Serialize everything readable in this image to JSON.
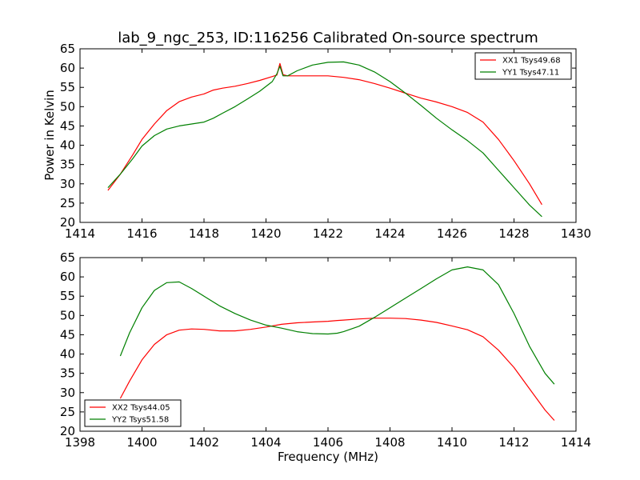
{
  "chart_data": [
    {
      "type": "line",
      "title": "lab_9_ngc_253, ID:116256 Calibrated On-source spectrum",
      "xlabel": "",
      "ylabel": "Power in Kelvin",
      "xlim": [
        1414,
        1430
      ],
      "ylim": [
        20,
        65
      ],
      "xticks": [
        "1414",
        "1416",
        "1418",
        "1420",
        "1422",
        "1424",
        "1426",
        "1428",
        "1430"
      ],
      "yticks": [
        "20",
        "25",
        "30",
        "35",
        "40",
        "45",
        "50",
        "55",
        "60",
        "65"
      ],
      "grid": false,
      "legend_position": "top-right",
      "series": [
        {
          "name": "XX1 Tsys49.68",
          "color": "#ff0000",
          "x": [
            1414.9,
            1415.3,
            1415.7,
            1416.0,
            1416.4,
            1416.8,
            1417.2,
            1417.6,
            1418.0,
            1418.3,
            1418.6,
            1419.0,
            1419.4,
            1419.8,
            1420.2,
            1420.35,
            1420.45,
            1420.55,
            1420.7,
            1421.0,
            1421.5,
            1422.0,
            1422.5,
            1423.0,
            1423.5,
            1424.0,
            1424.5,
            1425.0,
            1425.5,
            1426.0,
            1426.5,
            1427.0,
            1427.5,
            1428.0,
            1428.5,
            1428.9
          ],
          "y": [
            28.3,
            32.5,
            37.5,
            41.5,
            45.5,
            49.0,
            51.3,
            52.5,
            53.3,
            54.3,
            54.8,
            55.3,
            56.0,
            56.8,
            57.8,
            58.2,
            61.2,
            58.3,
            58.0,
            58.0,
            58.0,
            58.0,
            57.6,
            57.0,
            56.0,
            54.8,
            53.5,
            52.2,
            51.2,
            50.0,
            48.5,
            46.0,
            41.5,
            36.0,
            30.0,
            24.6
          ]
        },
        {
          "name": "YY1 Tsys47.11",
          "color": "#008000",
          "x": [
            1414.9,
            1415.3,
            1415.7,
            1416.0,
            1416.4,
            1416.8,
            1417.2,
            1417.6,
            1418.0,
            1418.3,
            1418.6,
            1419.0,
            1419.4,
            1419.8,
            1420.2,
            1420.35,
            1420.45,
            1420.55,
            1420.7,
            1421.0,
            1421.5,
            1422.0,
            1422.5,
            1423.0,
            1423.5,
            1424.0,
            1424.5,
            1425.0,
            1425.5,
            1426.0,
            1426.5,
            1427.0,
            1427.5,
            1428.0,
            1428.5,
            1428.9
          ],
          "y": [
            29.0,
            32.5,
            36.5,
            39.8,
            42.5,
            44.2,
            45.0,
            45.5,
            46.0,
            47.0,
            48.3,
            50.0,
            52.0,
            54.0,
            56.5,
            58.5,
            60.5,
            58.0,
            58.0,
            59.3,
            60.8,
            61.5,
            61.6,
            60.8,
            59.0,
            56.5,
            53.5,
            50.3,
            47.0,
            44.0,
            41.2,
            38.0,
            33.5,
            29.0,
            24.5,
            21.5
          ]
        }
      ]
    },
    {
      "type": "line",
      "title": "",
      "xlabel": "Frequency (MHz)",
      "ylabel": "",
      "xlim": [
        1398,
        1414
      ],
      "ylim": [
        20,
        65
      ],
      "xticks": [
        "1398",
        "1400",
        "1402",
        "1404",
        "1406",
        "1408",
        "1410",
        "1412",
        "1414"
      ],
      "yticks": [
        "20",
        "25",
        "30",
        "35",
        "40",
        "45",
        "50",
        "55",
        "60",
        "65"
      ],
      "grid": false,
      "legend_position": "bottom-left",
      "series": [
        {
          "name": "XX2 Tsys44.05",
          "color": "#ff0000",
          "x": [
            1399.3,
            1399.6,
            1400.0,
            1400.4,
            1400.8,
            1401.2,
            1401.6,
            1402.0,
            1402.5,
            1403.0,
            1403.5,
            1404.0,
            1404.5,
            1405.0,
            1405.5,
            1406.0,
            1406.3,
            1406.5,
            1407.0,
            1407.5,
            1408.0,
            1408.5,
            1409.0,
            1409.5,
            1410.0,
            1410.5,
            1411.0,
            1411.5,
            1412.0,
            1412.5,
            1413.0,
            1413.3
          ],
          "y": [
            28.5,
            33.0,
            38.5,
            42.5,
            45.0,
            46.2,
            46.5,
            46.4,
            46.0,
            46.0,
            46.4,
            47.0,
            47.7,
            48.1,
            48.3,
            48.5,
            48.7,
            48.8,
            49.1,
            49.3,
            49.3,
            49.2,
            48.8,
            48.2,
            47.3,
            46.3,
            44.5,
            41.0,
            36.5,
            31.0,
            25.5,
            22.8
          ]
        },
        {
          "name": "YY2 Tsys51.58",
          "color": "#008000",
          "x": [
            1399.3,
            1399.6,
            1400.0,
            1400.4,
            1400.8,
            1401.2,
            1401.6,
            1402.0,
            1402.5,
            1403.0,
            1403.5,
            1404.0,
            1404.5,
            1405.0,
            1405.5,
            1406.0,
            1406.3,
            1406.5,
            1407.0,
            1407.5,
            1408.0,
            1408.5,
            1409.0,
            1409.5,
            1410.0,
            1410.5,
            1411.0,
            1411.5,
            1412.0,
            1412.5,
            1413.0,
            1413.3
          ],
          "y": [
            39.5,
            45.5,
            52.0,
            56.5,
            58.5,
            58.7,
            57.0,
            55.0,
            52.5,
            50.5,
            48.8,
            47.5,
            46.7,
            45.8,
            45.3,
            45.2,
            45.4,
            45.8,
            47.2,
            49.5,
            52.0,
            54.5,
            57.0,
            59.5,
            61.8,
            62.6,
            61.8,
            58.0,
            50.5,
            42.0,
            35.0,
            32.2
          ]
        }
      ]
    }
  ]
}
